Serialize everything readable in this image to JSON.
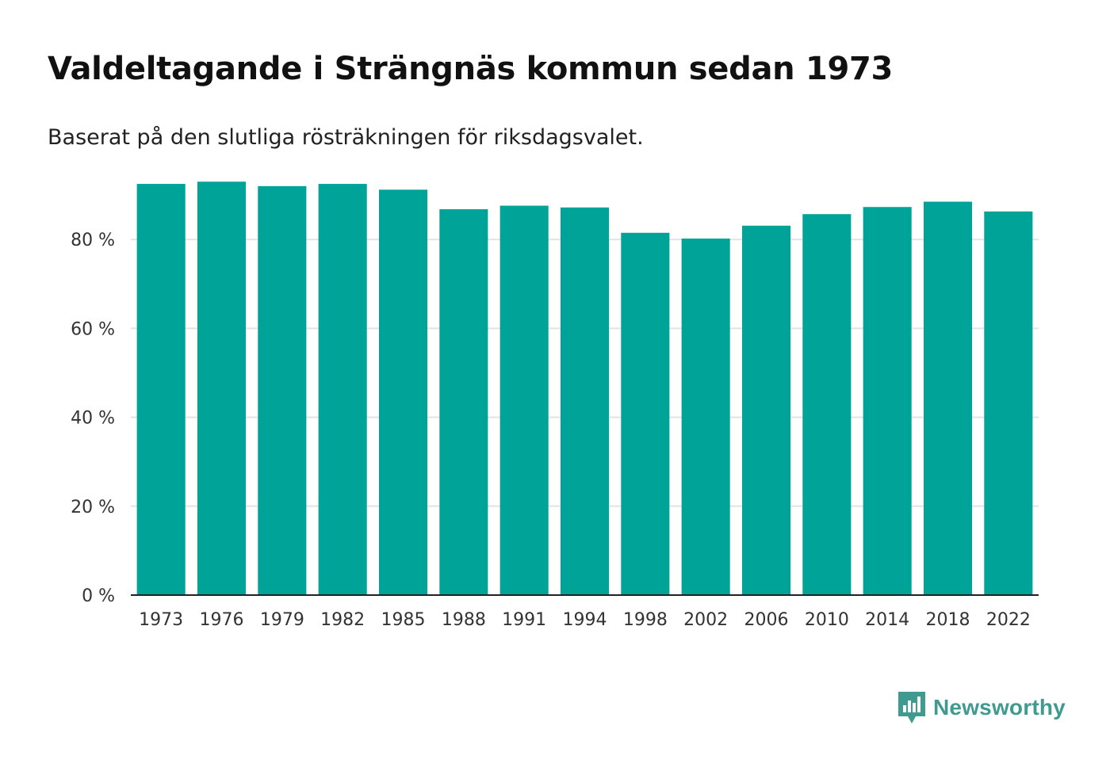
{
  "chart_data": {
    "type": "bar",
    "title": "Valdeltagande i Strängnäs kommun sedan 1973",
    "subtitle": "Baserat på den slutliga rösträkningen för riksdagsvalet.",
    "categories": [
      "1973",
      "1976",
      "1979",
      "1982",
      "1985",
      "1988",
      "1991",
      "1994",
      "1998",
      "2002",
      "2006",
      "2010",
      "2014",
      "2018",
      "2022"
    ],
    "values": [
      92.5,
      93.0,
      92.0,
      92.5,
      91.2,
      86.8,
      87.6,
      87.2,
      81.5,
      80.2,
      83.1,
      85.7,
      87.3,
      88.5,
      86.3
    ],
    "ylim": [
      0,
      100
    ],
    "yticks": [
      0,
      20,
      40,
      60,
      80
    ],
    "ytick_labels": [
      "0 %",
      "20 %",
      "40 %",
      "60 %",
      "80 %"
    ],
    "xlabel": "",
    "ylabel": "",
    "grid": true,
    "bar_color": "#00a398"
  },
  "logo": {
    "text": "Newsworthy",
    "icon": "newsworthy-logo-icon",
    "color": "#3f9a8f"
  }
}
